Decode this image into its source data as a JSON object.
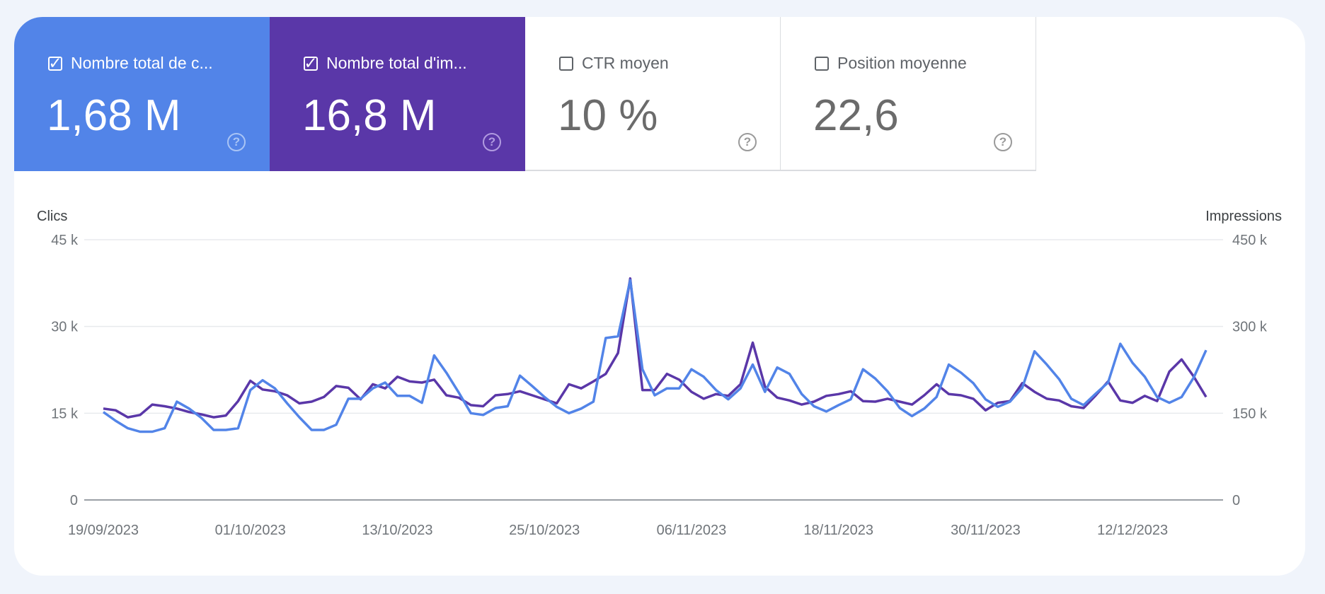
{
  "metrics": [
    {
      "label": "Nombre total de c...",
      "value": "1,68 M",
      "checked": true,
      "color": "#5284e8"
    },
    {
      "label": "Nombre total d'im...",
      "value": "16,8 M",
      "checked": true,
      "color": "#5a37a8"
    },
    {
      "label": "CTR moyen",
      "value": "10 %",
      "checked": false
    },
    {
      "label": "Position moyenne",
      "value": "22,6",
      "checked": false
    }
  ],
  "help_icon": "?",
  "chart_data": {
    "type": "line",
    "ylabel_left": "Clics",
    "ylabel_right": "Impressions",
    "y_left_ticks": [
      "0",
      "15 k",
      "30 k",
      "45 k"
    ],
    "y_right_ticks": [
      "0",
      "150 k",
      "300 k",
      "450 k"
    ],
    "ylim_left": [
      0,
      45000
    ],
    "ylim_right": [
      0,
      450000
    ],
    "x_tick_labels": [
      "19/09/2023",
      "01/10/2023",
      "13/10/2023",
      "25/10/2023",
      "06/11/2023",
      "18/11/2023",
      "30/11/2023",
      "12/12/2023"
    ],
    "x_range": [
      "19/09/2023",
      "18/12/2023"
    ],
    "grid": true,
    "series": [
      {
        "axis": "left",
        "color": "#5284e8",
        "values": [
          15200,
          13700,
          12400,
          11800,
          11800,
          12400,
          17000,
          15800,
          14200,
          12100,
          12100,
          12400,
          19000,
          20700,
          19300,
          16700,
          14300,
          12100,
          12100,
          13000,
          17500,
          17500,
          19300,
          20300,
          18000,
          18000,
          16800,
          25000,
          22000,
          18600,
          15000,
          14700,
          15900,
          16200,
          21500,
          19700,
          17800,
          16100,
          15000,
          15800,
          17000,
          28000,
          28300,
          38000,
          22600,
          18100,
          19300,
          19300,
          22600,
          21300,
          19000,
          17400,
          19300,
          23400,
          18700,
          22900,
          21800,
          18300,
          16200,
          15300,
          16400,
          17400,
          22600,
          21000,
          18800,
          15900,
          14500,
          15800,
          17800,
          23400,
          22000,
          20200,
          17400,
          16100,
          17000,
          19400,
          25700,
          23400,
          20900,
          17500,
          16400,
          18400,
          20300,
          27000,
          23700,
          21300,
          17800,
          16800,
          17800,
          21200,
          25900
        ]
      },
      {
        "axis": "right",
        "color": "#5a37a8",
        "values": [
          158000,
          155000,
          143000,
          147000,
          165000,
          162000,
          158000,
          152000,
          148000,
          143000,
          146000,
          171000,
          206000,
          191000,
          188000,
          181000,
          167000,
          170000,
          178000,
          197000,
          194000,
          174000,
          200000,
          193000,
          213000,
          205000,
          203000,
          208000,
          181000,
          177000,
          164000,
          162000,
          181000,
          183000,
          188000,
          181000,
          174000,
          167000,
          200000,
          193000,
          205000,
          218000,
          254000,
          383000,
          190000,
          190000,
          218000,
          208000,
          187000,
          175000,
          183000,
          180000,
          200000,
          272000,
          196000,
          177000,
          172000,
          165000,
          170000,
          180000,
          183000,
          188000,
          171000,
          170000,
          175000,
          170000,
          165000,
          181000,
          200000,
          183000,
          181000,
          175000,
          155000,
          168000,
          171000,
          202000,
          187000,
          175000,
          172000,
          162000,
          159000,
          181000,
          205000,
          172000,
          168000,
          180000,
          171000,
          222000,
          243000,
          213000,
          178000
        ]
      }
    ]
  }
}
